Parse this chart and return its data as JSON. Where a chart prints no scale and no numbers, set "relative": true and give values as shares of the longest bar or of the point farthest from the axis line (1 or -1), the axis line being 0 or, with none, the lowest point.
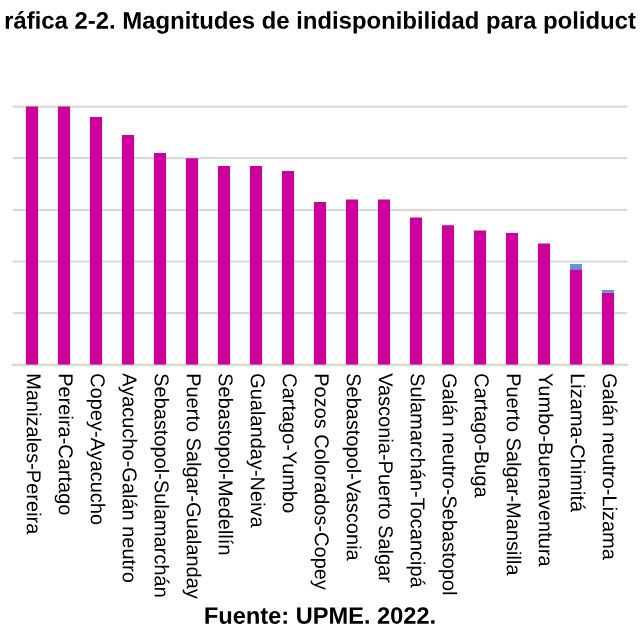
{
  "chart_data": {
    "type": "bar",
    "title": "ráfica 2-2. Magnitudes de indisponibilidad para poliduct",
    "categories": [
      "Manizales-Pereira",
      "Pereira-Cartago",
      "Copey-Ayacucho",
      "Ayacucho-Galán neutro",
      "Sebastopol-Sulamarchán",
      "Puerto Salgar-Gualanday",
      "Sebastopol-Medellín",
      "Gualanday-Neiva",
      "Cartago-Yumbo",
      "Pozos Colorados-Copey",
      "Sebastopol-Vasconia",
      "Vasconia-Puerto Salgar",
      "Sulamarchán-Tocancipá",
      "Galán neutro-Sebastopol",
      "Cartago-Buga",
      "Puerto Salgar-Mansilla",
      "Yumbo-Buenaventura",
      "Lizama-Chimitá",
      "Galán neutro-Lizama"
    ],
    "series": [
      {
        "color": "#cc0099",
        "values": [
          1,
          1,
          0.96,
          0.89,
          0.82,
          0.8,
          0.77,
          0.77,
          0.75,
          0.63,
          0.64,
          0.64,
          0.57,
          0.54,
          0.52,
          0.51,
          0.47,
          0.37,
          0.28
        ]
      },
      {
        "color": "#5b9bd5",
        "values": [
          0,
          0,
          0,
          0,
          0,
          0,
          0,
          0,
          0,
          0,
          0,
          0,
          0,
          0,
          0,
          0,
          0,
          0.02,
          0.01
        ]
      }
    ],
    "stacked": true,
    "relative": true,
    "grid": "y",
    "legend": false,
    "annotations": [
      "Fuente: UPME. 2022."
    ]
  }
}
